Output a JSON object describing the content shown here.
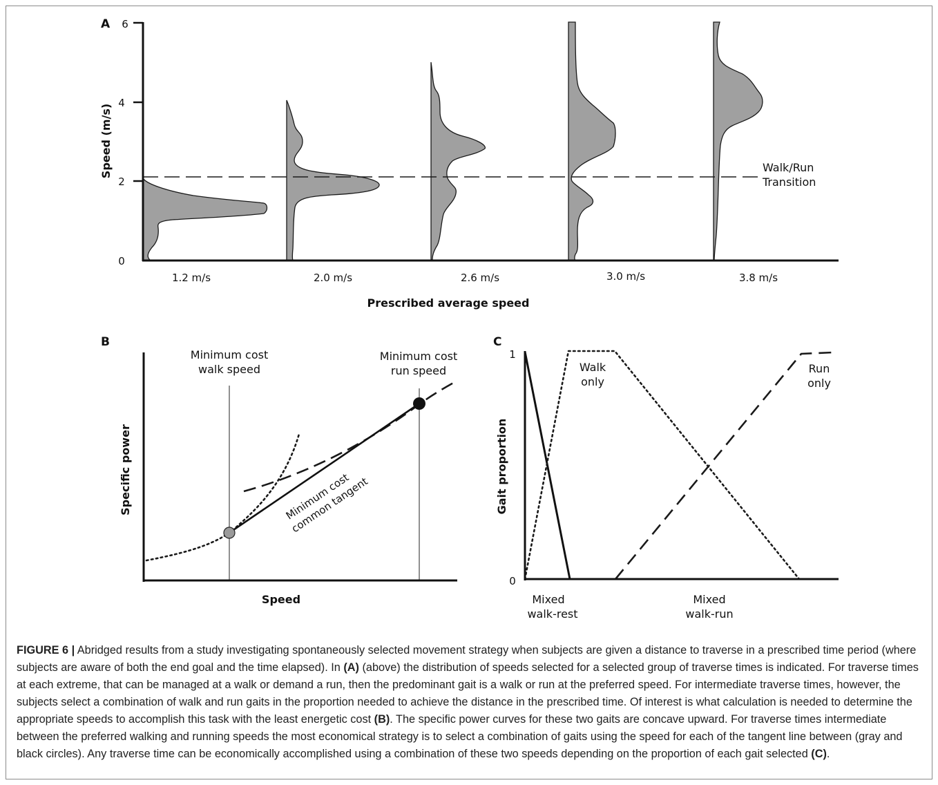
{
  "panel_a": {
    "letter": "A",
    "ylabel": "Speed (m/s)",
    "xlabel": "Prescribed average speed",
    "yticks": [
      "0",
      "2",
      "4",
      "6"
    ],
    "categories": [
      "1.2 m/s",
      "2.0 m/s",
      "2.6 m/s",
      "3.0 m/s",
      "3.8 m/s"
    ],
    "transition_label_1": "Walk/Run",
    "transition_label_2": "Transition"
  },
  "panel_b": {
    "letter": "B",
    "ylabel": "Specific power",
    "xlabel": "Speed",
    "walk_label_1": "Minimum cost",
    "walk_label_2": "walk speed",
    "run_label_1": "Minimum cost",
    "run_label_2": "run speed",
    "tangent_label_1": "Minimum cost",
    "tangent_label_2": "common tangent"
  },
  "panel_c": {
    "letter": "C",
    "ylabel": "Gait proportion",
    "ytick_top": "1",
    "ytick_bottom": "0",
    "walk_only_1": "Walk",
    "walk_only_2": "only",
    "run_only_1": "Run",
    "run_only_2": "only",
    "mixed_rest_1": "Mixed",
    "mixed_rest_2": "walk-rest",
    "mixed_run_1": "Mixed",
    "mixed_run_2": "walk-run"
  },
  "caption": {
    "label": "FIGURE 6 |",
    "t1": " Abridged results from a study investigating spontaneously selected movement strategy when subjects are given a distance to traverse in a prescribed time period (where subjects are aware of both the end goal and the time elapsed). In ",
    "r1": "(A)",
    "t2": " (above) the distribution of speeds selected for a selected group of traverse times is indicated. For traverse times at each extreme, that can be managed at a walk or demand a run, then the predominant gait is a walk or run at the preferred speed. For intermediate traverse times, however, the subjects select a combination of walk and run gaits in the proportion needed to achieve the distance in the prescribed time. Of interest is what calculation is needed to determine the appropriate speeds to accomplish this task with the least energetic cost ",
    "r2": "(B)",
    "t3": ". The specific power curves for these two gaits are concave upward. For traverse times intermediate between the preferred walking and running speeds the most economical strategy is to select a combination of gaits using the speed for each of the tangent line between (gray and black circles). Any traverse time can be economically accomplished using a combination of these two speeds depending on the proportion of each gait selected ",
    "r3": "(C)",
    "t4": "."
  }
}
